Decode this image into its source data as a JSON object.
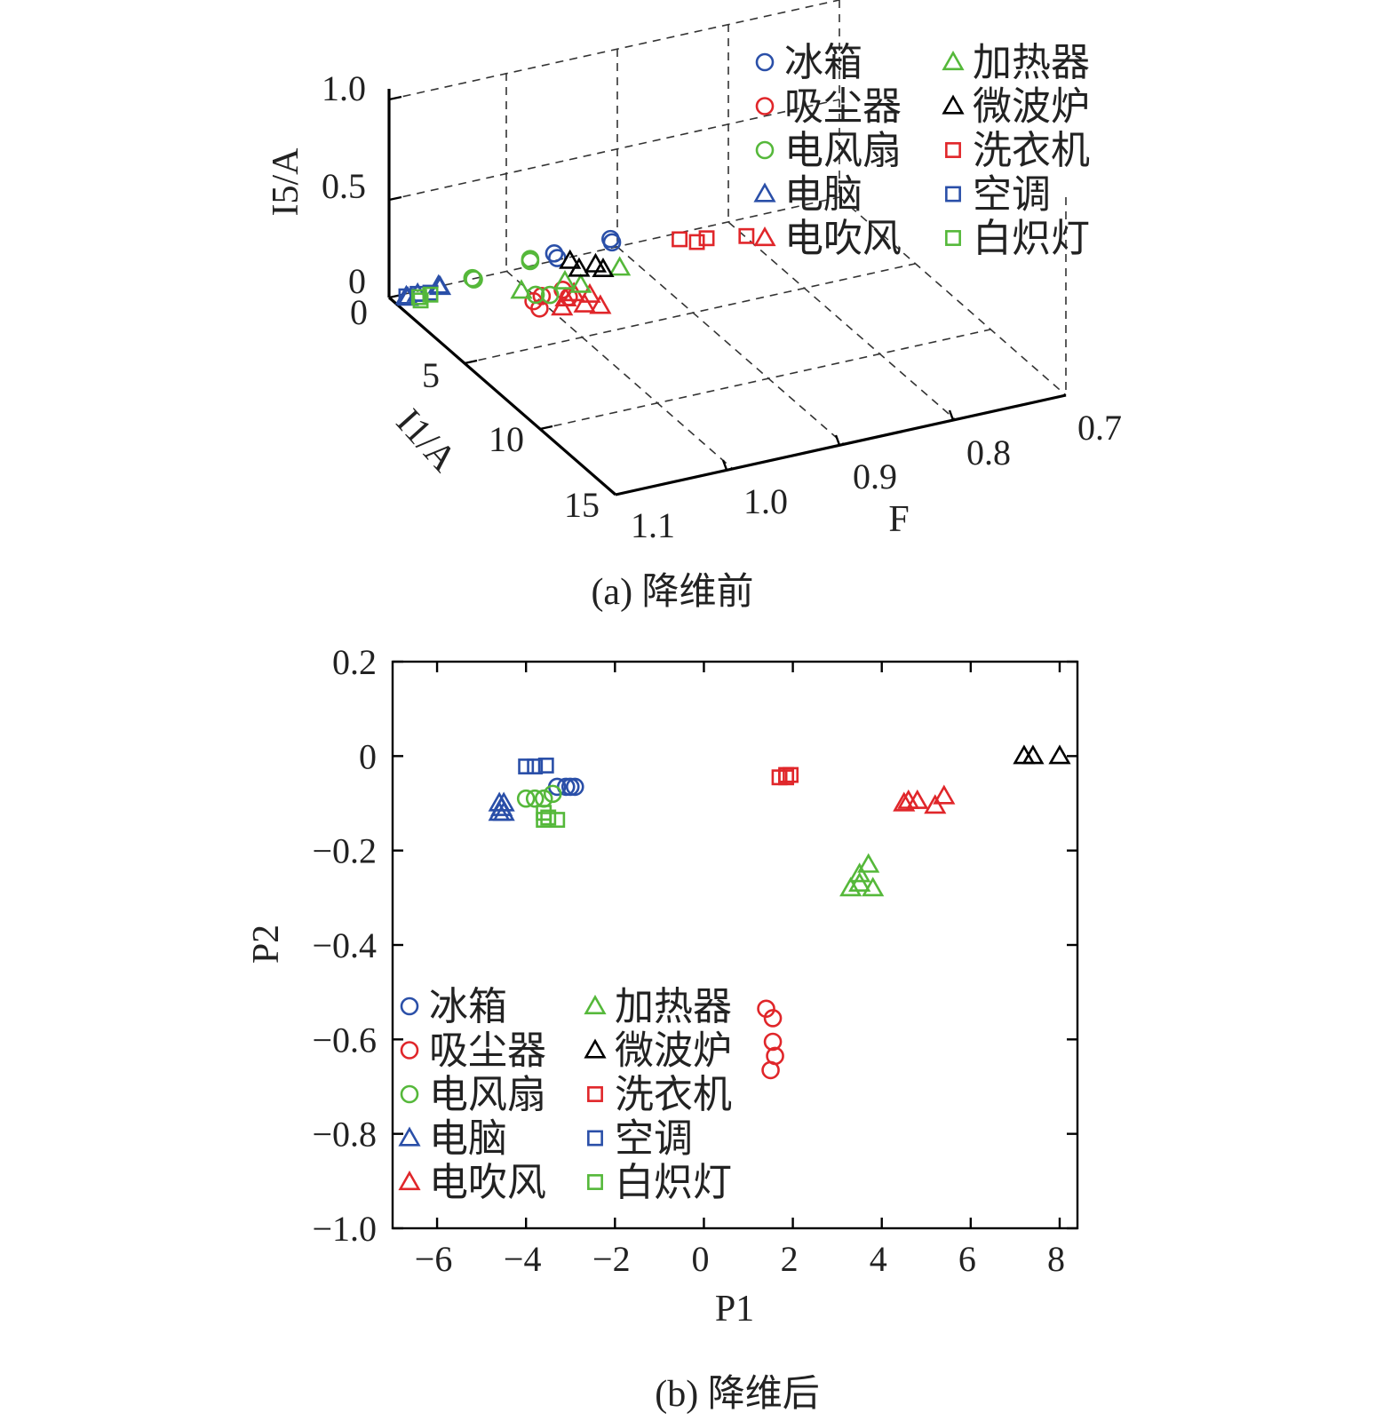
{
  "colors": {
    "blue": "#2a4fa8",
    "red": "#e0262a",
    "green": "#55b83a",
    "black": "#000000"
  },
  "legend": [
    {
      "label": "冰箱",
      "marker": "circle",
      "color": "#2a4fa8"
    },
    {
      "label": "吸尘器",
      "marker": "circle",
      "color": "#e0262a"
    },
    {
      "label": "电风扇",
      "marker": "circle",
      "color": "#55b83a"
    },
    {
      "label": "电脑",
      "marker": "triangle",
      "color": "#2a4fa8"
    },
    {
      "label": "电吹风",
      "marker": "triangle",
      "color": "#e0262a"
    },
    {
      "label": "加热器",
      "marker": "triangle",
      "color": "#55b83a"
    },
    {
      "label": "微波炉",
      "marker": "triangle",
      "color": "#000000"
    },
    {
      "label": "洗衣机",
      "marker": "square",
      "color": "#e0262a"
    },
    {
      "label": "空调",
      "marker": "square",
      "color": "#2a4fa8"
    },
    {
      "label": "白炽灯",
      "marker": "square",
      "color": "#55b83a"
    }
  ],
  "chart_data": [
    {
      "type": "scatter",
      "projection": "3d",
      "caption": "(a) 降维前",
      "xlabel": "F",
      "ylabel": "I1/A",
      "zlabel": "I5/A",
      "xlim": [
        0.7,
        1.1
      ],
      "x_ticks": [
        "0.7",
        "0.8",
        "0.9",
        "1.0",
        "1.1"
      ],
      "ylim": [
        0,
        15
      ],
      "y_ticks": [
        "0",
        "5",
        "10",
        "15"
      ],
      "zlim": [
        0,
        1.0
      ],
      "z_ticks": [
        "0",
        "0.5",
        "1.0"
      ],
      "grid": true,
      "legend_position": "top-right",
      "series": [
        {
          "name": "冰箱",
          "points": [
            [
              0.96,
              0.5,
              0.08
            ],
            [
              0.96,
              0.7,
              0.07
            ],
            [
              0.91,
              0.5,
              0.09
            ],
            [
              0.91,
              0.6,
              0.08
            ]
          ]
        },
        {
          "name": "吸尘器",
          "points": [
            [
              1.02,
              3.6,
              0.12
            ],
            [
              1.02,
              4.0,
              0.11
            ],
            [
              1.01,
              3.4,
              0.12
            ],
            [
              0.99,
              3.7,
              0.11
            ],
            [
              0.99,
              3.3,
              0.12
            ]
          ]
        },
        {
          "name": "电风扇",
          "points": [
            [
              1.03,
              0.3,
              0.03
            ],
            [
              1.03,
              0.4,
              0.03
            ],
            [
              0.98,
              0.4,
              0.06
            ],
            [
              0.98,
              0.4,
              0.07
            ],
            [
              1.01,
              3.0,
              0.1
            ],
            [
              1.0,
              3.2,
              0.1
            ]
          ]
        },
        {
          "name": "电脑",
          "points": [
            [
              1.09,
              0.5,
              0.02
            ],
            [
              1.09,
              0.4,
              0.02
            ],
            [
              1.08,
              0.4,
              0.02
            ],
            [
              1.06,
              0.3,
              0.03
            ],
            [
              1.06,
              0.4,
              0.03
            ]
          ]
        },
        {
          "name": "电吹风",
          "points": [
            [
              0.99,
              3.5,
              0.09
            ],
            [
              1.0,
              4.0,
              0.09
            ],
            [
              0.98,
              4.0,
              0.08
            ],
            [
              0.97,
              4.3,
              0.08
            ],
            [
              0.97,
              3.6,
              0.09
            ],
            [
              0.98,
              3.3,
              0.09
            ]
          ]
        },
        {
          "name": "加热器",
          "points": [
            [
              1.02,
              2.8,
              0.12
            ],
            [
              0.98,
              2.7,
              0.11
            ],
            [
              0.93,
              2.6,
              0.11
            ],
            [
              0.97,
              3.0,
              0.1
            ]
          ]
        },
        {
          "name": "微波炉",
          "points": [
            [
              0.93,
              1.0,
              0.02
            ],
            [
              0.95,
              0.8,
              0.05
            ],
            [
              0.95,
              1.4,
              0.05
            ],
            [
              0.93,
              1.5,
              0.03
            ]
          ]
        },
        {
          "name": "洗衣机",
          "points": [
            [
              0.85,
              0.6,
              0.02
            ],
            [
              0.84,
              1.0,
              0.02
            ],
            [
              0.83,
              0.9,
              0.02
            ],
            [
              0.8,
              1.3,
              0.02
            ]
          ]
        },
        {
          "name": "空调",
          "points": [
            [
              1.09,
              0.4,
              0.02
            ],
            [
              1.08,
              0.4,
              0.02
            ],
            [
              1.07,
              0.5,
              0.02
            ]
          ]
        },
        {
          "name": "白炽灯",
          "points": [
            [
              1.08,
              0.5,
              0.01
            ],
            [
              1.08,
              0.6,
              0.0
            ],
            [
              1.07,
              0.5,
              0.01
            ]
          ]
        }
      ]
    },
    {
      "type": "scatter",
      "caption": "(b) 降维后",
      "xlabel": "P1",
      "ylabel": "P2",
      "xlim": [
        -7,
        8.4
      ],
      "ylim": [
        -1.0,
        0.2
      ],
      "x_ticks": [
        "−6",
        "−4",
        "−2",
        "0",
        "2",
        "4",
        "6",
        "8"
      ],
      "y_ticks": [
        "−1.0",
        "−0.8",
        "−0.6",
        "−0.4",
        "−0.2",
        "0",
        "0.2"
      ],
      "grid": false,
      "legend_position": "bottom-left",
      "series": [
        {
          "name": "冰箱",
          "points": [
            [
              -3.3,
              -0.065
            ],
            [
              -3.1,
              -0.065
            ],
            [
              -3.0,
              -0.065
            ],
            [
              -2.9,
              -0.065
            ]
          ]
        },
        {
          "name": "吸尘器",
          "points": [
            [
              1.4,
              -0.535
            ],
            [
              1.55,
              -0.555
            ],
            [
              1.55,
              -0.605
            ],
            [
              1.6,
              -0.635
            ],
            [
              1.5,
              -0.665
            ]
          ]
        },
        {
          "name": "电风扇",
          "points": [
            [
              -4.0,
              -0.09
            ],
            [
              -3.8,
              -0.09
            ],
            [
              -3.6,
              -0.09
            ],
            [
              -3.4,
              -0.08
            ]
          ]
        },
        {
          "name": "电脑",
          "points": [
            [
              -4.6,
              -0.1
            ],
            [
              -4.55,
              -0.11
            ],
            [
              -4.5,
              -0.12
            ],
            [
              -4.6,
              -0.12
            ],
            [
              -4.5,
              -0.1
            ]
          ]
        },
        {
          "name": "电吹风",
          "points": [
            [
              4.5,
              -0.1
            ],
            [
              4.8,
              -0.095
            ],
            [
              5.2,
              -0.105
            ],
            [
              5.4,
              -0.085
            ],
            [
              4.6,
              -0.095
            ]
          ]
        },
        {
          "name": "加热器",
          "points": [
            [
              3.7,
              -0.23
            ],
            [
              3.5,
              -0.25
            ],
            [
              3.3,
              -0.28
            ],
            [
              3.8,
              -0.28
            ],
            [
              3.5,
              -0.27
            ]
          ]
        },
        {
          "name": "微波炉",
          "points": [
            [
              7.2,
              0.0
            ],
            [
              7.4,
              0.0
            ],
            [
              8.0,
              0.0
            ]
          ]
        },
        {
          "name": "洗衣机",
          "points": [
            [
              1.7,
              -0.045
            ],
            [
              1.85,
              -0.04
            ],
            [
              1.95,
              -0.04
            ],
            [
              1.85,
              -0.045
            ]
          ]
        },
        {
          "name": "空调",
          "points": [
            [
              -4.0,
              -0.022
            ],
            [
              -3.8,
              -0.022
            ],
            [
              -3.55,
              -0.02
            ]
          ]
        },
        {
          "name": "白炽灯",
          "points": [
            [
              -3.6,
              -0.135
            ],
            [
              -3.5,
              -0.13
            ],
            [
              -3.3,
              -0.135
            ],
            [
              -3.6,
              -0.12
            ]
          ]
        }
      ]
    }
  ]
}
